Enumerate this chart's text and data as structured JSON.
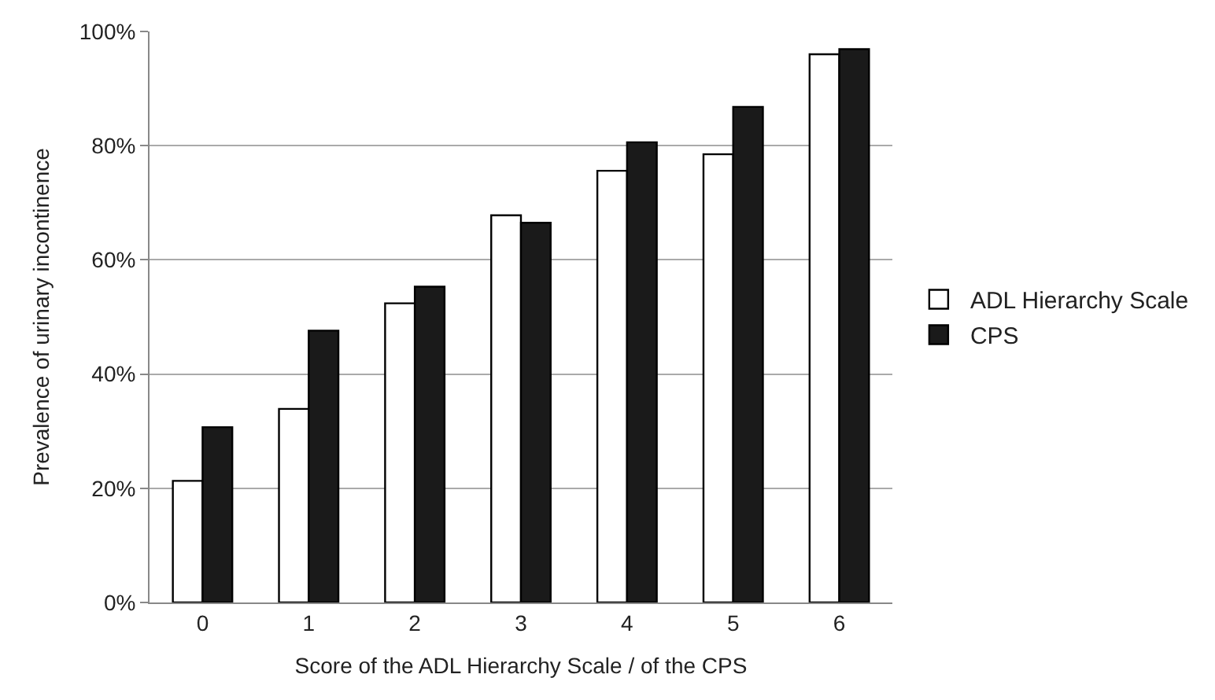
{
  "chart_data": {
    "type": "bar",
    "xlabel": "Score of the ADL Hierarchy Scale / of the CPS",
    "ylabel": "Prevalence of urinary incontinence",
    "categories": [
      "0",
      "1",
      "2",
      "3",
      "4",
      "5",
      "6"
    ],
    "series": [
      {
        "name": "ADL Hierarchy Scale",
        "color": "#ffffff",
        "values": [
          21.3,
          33.9,
          52.4,
          67.8,
          75.6,
          78.5,
          96.0
        ]
      },
      {
        "name": "CPS",
        "color": "#1a1a1a",
        "values": [
          30.7,
          47.6,
          55.3,
          66.5,
          80.6,
          86.8,
          96.9
        ]
      }
    ],
    "ylim": [
      0,
      100
    ],
    "yticks": [
      {
        "value": 0,
        "label": "0%"
      },
      {
        "value": 20,
        "label": "20%"
      },
      {
        "value": 40,
        "label": "40%"
      },
      {
        "value": 60,
        "label": "60%"
      },
      {
        "value": 80,
        "label": "80%"
      },
      {
        "value": 100,
        "label": "100%"
      }
    ],
    "grid": "y",
    "legend": "right"
  }
}
